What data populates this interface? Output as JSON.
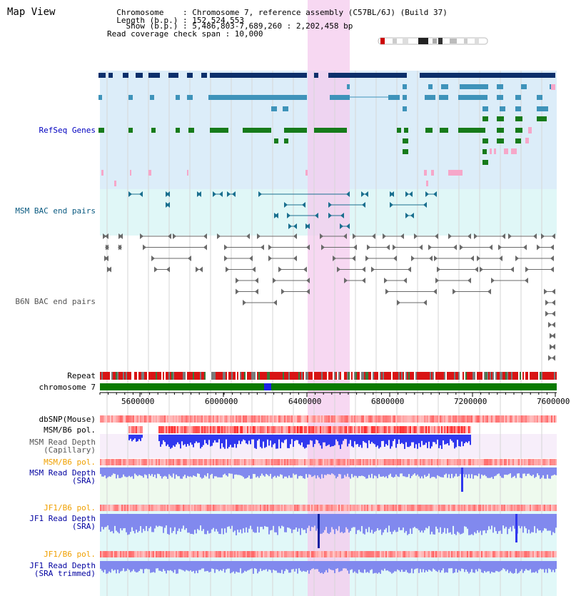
{
  "header": {
    "title": "Map View",
    "info_lines": [
      "  Chromosome    : Chromosome 7, reference assembly (C57BL/6J) (Build 37)",
      "  Length (b.p.) : 152,524,553",
      "    Show (b.p.) : 5,486,803-7,689,260 : 2,202,458 bp",
      "Read coverage check span : 10,000"
    ]
  },
  "colors": {
    "refseq_bg": "#dcedf9",
    "msm_bac_bg": "#e0f7f7",
    "highlight": "#f4cbee",
    "refseq_navy": "#0c2f6b",
    "refseq_teal": "#3e93ba",
    "refseq_green": "#167b1a",
    "refseq_pink": "#f6a7c9",
    "msm_bac": "#1a6f8f",
    "b6n_bac": "#6a6a6a",
    "chromosome_bar": "#0a7a00",
    "chromosome_mark": "#1d22e6",
    "dbsnp": "#f6a8a8",
    "depth_blue": "#3038ee",
    "depth_lightblue": "#8189ee",
    "label_orange": "#f0a000",
    "label_navy": "#0000a0"
  },
  "tracks": {
    "refseq": "RefSeq Genes",
    "msm_bac": "MSM BAC end pairs",
    "b6n_bac": "B6N BAC end pairs",
    "repeat": "Repeat",
    "chromosome": "chromosome 7",
    "dbsnp": "dbSNP(Mouse)",
    "msm_pol_1": "MSM/B6 pol.",
    "msm_depth_cap": "MSM Read Depth\n(Capillary)",
    "msm_pol_2": "MSM/B6 pol.",
    "msm_depth_sra": "MSM Read Depth\n(SRA)",
    "jf1_pol_1": "JF1/B6 pol.",
    "jf1_depth_sra": "JF1 Read Depth\n(SRA)",
    "jf1_pol_2": "JF1/B6 pol.",
    "jf1_depth_trim": "JF1 Read Depth\n(SRA trimmed)"
  },
  "axis": {
    "ticks": [
      "5600000",
      "6000000",
      "6400000",
      "6800000",
      "7200000",
      "7600000"
    ]
  }
}
